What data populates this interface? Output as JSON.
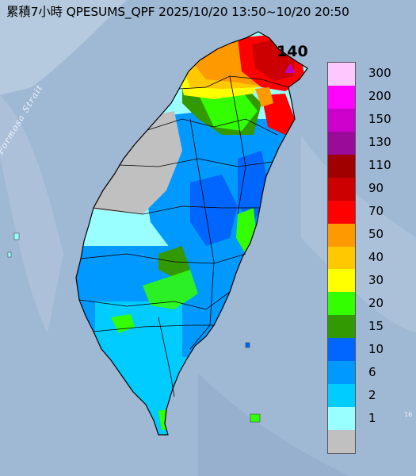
{
  "title": "累積7小時 QPESUMS_QPF 2025/10/20 13:50~10/20 20:50",
  "strait_label": "Formosa Strait",
  "max_value_label": "140",
  "corner_label": "16",
  "legend": {
    "items": [
      {
        "label": "300",
        "color": "#fdc8fd"
      },
      {
        "label": "200",
        "color": "#fd05fd"
      },
      {
        "label": "150",
        "color": "#cc00cc"
      },
      {
        "label": "130",
        "color": "#9a0b9a"
      },
      {
        "label": "110",
        "color": "#a00000"
      },
      {
        "label": "90",
        "color": "#cc0000"
      },
      {
        "label": "70",
        "color": "#ff0000"
      },
      {
        "label": "50",
        "color": "#ff9900"
      },
      {
        "label": "40",
        "color": "#ffc800"
      },
      {
        "label": "30",
        "color": "#ffff00"
      },
      {
        "label": "20",
        "color": "#33ff00"
      },
      {
        "label": "15",
        "color": "#339900"
      },
      {
        "label": "10",
        "color": "#0066ff"
      },
      {
        "label": "6",
        "color": "#0099ff"
      },
      {
        "label": "2",
        "color": "#00ccff"
      },
      {
        "label": "1",
        "color": "#99ffff"
      },
      {
        "label": "",
        "color": "#c0c0c0"
      }
    ]
  },
  "colors": {
    "sea": "#9fb8d3",
    "no_rain": "#c0c0c0",
    "light": "#99ffff",
    "blue1": "#00ccff",
    "blue2": "#0099ff",
    "blue3": "#0066ff",
    "green_dark": "#339900",
    "green": "#33ff00",
    "yellow": "#ffff00",
    "gold": "#ffc800",
    "orange": "#ff9900",
    "red": "#ff0000",
    "dark_red": "#cc0000",
    "marker": "#c000c0"
  }
}
